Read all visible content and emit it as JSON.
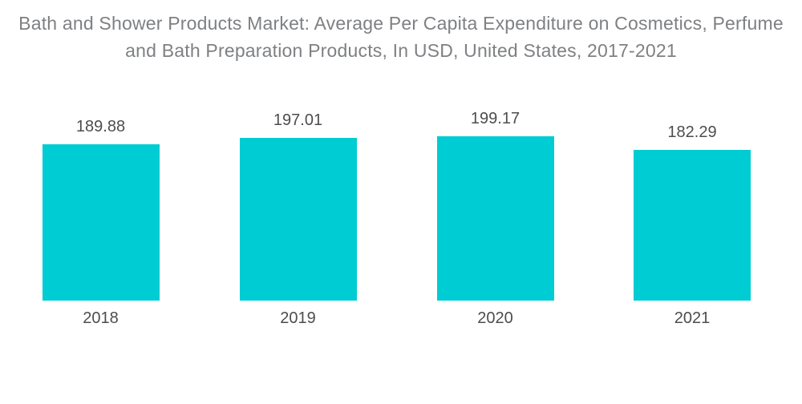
{
  "title": {
    "full": "Bath and Shower Products Market: Average Per Capita Expenditure on Cosmetics, Perfume and Bath Preparation Products, In USD, United States, 2017-2021",
    "line1": "Bath and Shower Products Market: Average Per Capita Expenditure on Cosmetics, Perfume",
    "line2": "and Bath Preparation Products, In USD, United States, 2017-2021"
  },
  "chart_data": {
    "type": "bar",
    "title": "Bath and Shower Products Market: Average Per Capita Expenditure on Cosmetics, Perfume and Bath Preparation Products, In USD, United States, 2017-2021",
    "categories": [
      "2018",
      "2019",
      "2020",
      "2021"
    ],
    "values": [
      189.88,
      197.01,
      199.17,
      182.29
    ],
    "value_labels": [
      "189.88",
      "197.01",
      "199.17",
      "182.29"
    ],
    "xlabel": "",
    "ylabel": "",
    "unit": "USD",
    "ylim": [
      0,
      199.17
    ],
    "grid": false,
    "legend": false,
    "axis_lines": false,
    "colors": {
      "bar": "#00ccd3",
      "title_text": "#7e8083",
      "label_text": "#4c4d4f",
      "background": "#ffffff"
    }
  }
}
